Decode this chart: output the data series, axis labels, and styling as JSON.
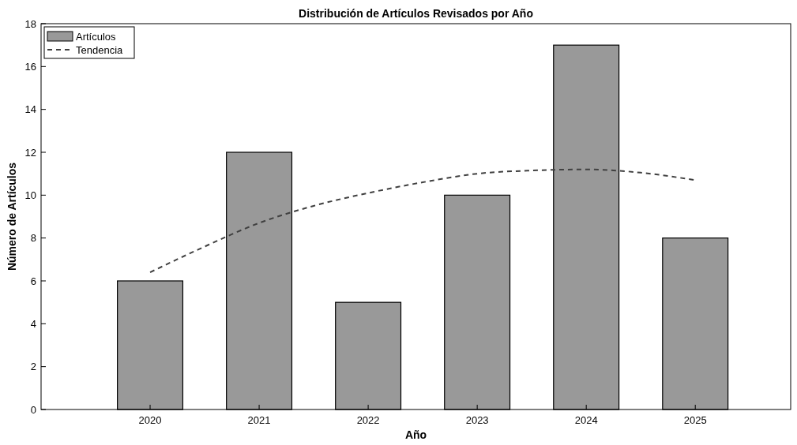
{
  "chart_data": {
    "type": "bar",
    "title": "Distribución de Artículos Revisados por Año",
    "xlabel": "Año",
    "ylabel": "Número de Artículos",
    "x": [
      2020,
      2021,
      2022,
      2023,
      2024,
      2025
    ],
    "xlim": [
      2019,
      2025.875
    ],
    "xticks": [
      2020,
      2021,
      2022,
      2023,
      2024,
      2025
    ],
    "ylim": [
      0,
      18
    ],
    "yticks": [
      0,
      2,
      4,
      6,
      8,
      10,
      12,
      14,
      16,
      18
    ],
    "series": [
      {
        "name": "Artículos",
        "color": "#999999",
        "values": [
          6,
          12,
          5,
          10,
          17,
          8
        ]
      },
      {
        "name": "Tendencia",
        "type": "line",
        "color": "#404040",
        "line_style": "dashed",
        "x": [
          2020,
          2020.5,
          2021,
          2021.5,
          2022,
          2022.5,
          2023,
          2023.5,
          2024,
          2024.5,
          2025
        ],
        "values": [
          6.4,
          7.6,
          8.7,
          9.5,
          10.1,
          10.6,
          11.0,
          11.15,
          11.2,
          11.05,
          10.7
        ]
      }
    ],
    "legend": "top left",
    "grid": false
  }
}
